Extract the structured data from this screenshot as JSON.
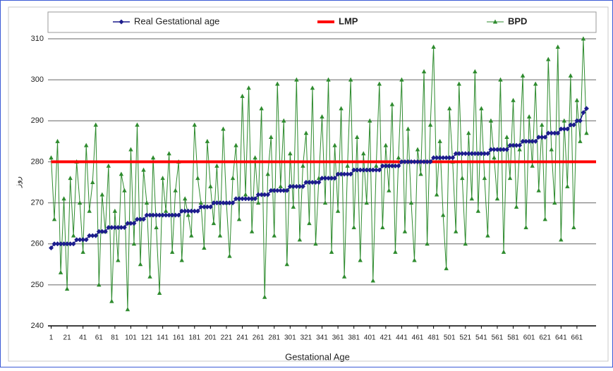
{
  "chart_data": {
    "type": "line",
    "x_label": "Gestational Age",
    "y_label": "روز",
    "legend": "top",
    "grid": true,
    "xlim": [
      -3,
      685
    ],
    "ylim": [
      240,
      310
    ],
    "xticks": [
      1,
      21,
      41,
      61,
      81,
      101,
      121,
      141,
      161,
      181,
      201,
      221,
      241,
      261,
      281,
      301,
      321,
      341,
      361,
      381,
      401,
      421,
      441,
      461,
      481,
      501,
      521,
      541,
      561,
      581,
      601,
      621,
      641,
      661
    ],
    "yticks": [
      240,
      250,
      260,
      270,
      280,
      290,
      300,
      310
    ],
    "x": [
      1,
      5,
      9,
      13,
      17,
      21,
      25,
      29,
      33,
      37,
      41,
      45,
      49,
      53,
      57,
      61,
      65,
      69,
      73,
      77,
      81,
      85,
      89,
      93,
      97,
      101,
      105,
      109,
      113,
      117,
      121,
      125,
      129,
      133,
      137,
      141,
      145,
      149,
      153,
      157,
      161,
      165,
      169,
      173,
      177,
      181,
      185,
      189,
      193,
      197,
      201,
      205,
      209,
      213,
      217,
      221,
      225,
      229,
      233,
      237,
      241,
      245,
      249,
      253,
      257,
      261,
      265,
      269,
      273,
      277,
      281,
      285,
      289,
      293,
      297,
      301,
      305,
      309,
      313,
      317,
      321,
      325,
      329,
      333,
      337,
      341,
      345,
      349,
      353,
      357,
      361,
      365,
      369,
      373,
      377,
      381,
      385,
      389,
      393,
      397,
      401,
      405,
      409,
      413,
      417,
      421,
      425,
      429,
      433,
      437,
      441,
      445,
      449,
      453,
      457,
      461,
      465,
      469,
      473,
      477,
      481,
      485,
      489,
      493,
      497,
      501,
      505,
      509,
      513,
      517,
      521,
      525,
      529,
      533,
      537,
      541,
      545,
      549,
      553,
      557,
      561,
      565,
      569,
      573,
      577,
      581,
      585,
      589,
      593,
      597,
      601,
      605,
      609,
      613,
      617,
      621,
      625,
      629,
      633,
      637,
      641,
      645,
      649,
      653,
      657,
      661,
      665,
      669,
      673
    ],
    "series": [
      {
        "name": "Real Gestational age",
        "color": "#1c1c8c",
        "marker": "diamond",
        "width": 1.5,
        "values": [
          259,
          260,
          260,
          260,
          260,
          260,
          260,
          260,
          261,
          261,
          261,
          261,
          262,
          262,
          262,
          263,
          263,
          263,
          264,
          264,
          264,
          264,
          264,
          264,
          265,
          265,
          265,
          266,
          266,
          266,
          267,
          267,
          267,
          267,
          267,
          267,
          267,
          267,
          267,
          267,
          267,
          268,
          268,
          268,
          268,
          268,
          268,
          269,
          269,
          269,
          269,
          270,
          270,
          270,
          270,
          270,
          270,
          270,
          271,
          271,
          271,
          271,
          271,
          271,
          271,
          272,
          272,
          272,
          272,
          273,
          273,
          273,
          273,
          273,
          273,
          274,
          274,
          274,
          274,
          274,
          275,
          275,
          275,
          275,
          275,
          276,
          276,
          276,
          276,
          276,
          277,
          277,
          277,
          277,
          277,
          278,
          278,
          278,
          278,
          278,
          278,
          278,
          278,
          278,
          279,
          279,
          279,
          279,
          279,
          279,
          280,
          280,
          280,
          280,
          280,
          280,
          280,
          280,
          280,
          280,
          281,
          281,
          281,
          281,
          281,
          281,
          281,
          282,
          282,
          282,
          282,
          282,
          282,
          282,
          282,
          282,
          282,
          282,
          283,
          283,
          283,
          283,
          283,
          283,
          284,
          284,
          284,
          284,
          285,
          285,
          285,
          285,
          285,
          286,
          286,
          286,
          287,
          287,
          287,
          287,
          288,
          288,
          288,
          289,
          289,
          290,
          290,
          292,
          293
        ]
      },
      {
        "name": "LMP",
        "color": "#ff0000",
        "marker": "none",
        "width": 4,
        "x": [
          1,
          685
        ],
        "values": [
          280,
          280
        ]
      },
      {
        "name": "BPD",
        "color": "#2e8b2e",
        "marker": "triangle",
        "width": 1,
        "values": [
          281,
          266,
          285,
          253,
          271,
          249,
          276,
          262,
          280,
          270,
          258,
          284,
          268,
          275,
          289,
          250,
          272,
          263,
          279,
          246,
          268,
          256,
          277,
          273,
          244,
          283,
          260,
          289,
          255,
          278,
          270,
          252,
          281,
          264,
          248,
          276,
          268,
          282,
          258,
          273,
          280,
          256,
          271,
          267,
          262,
          289,
          276,
          270,
          259,
          285,
          274,
          265,
          279,
          262,
          288,
          270,
          257,
          276,
          284,
          266,
          296,
          272,
          298,
          263,
          281,
          270,
          293,
          247,
          277,
          286,
          262,
          299,
          274,
          290,
          255,
          282,
          269,
          300,
          261,
          279,
          287,
          265,
          298,
          260,
          276,
          291,
          270,
          300,
          258,
          284,
          268,
          293,
          252,
          279,
          300,
          264,
          286,
          256,
          282,
          270,
          290,
          251,
          279,
          299,
          264,
          284,
          273,
          294,
          258,
          281,
          300,
          263,
          288,
          270,
          256,
          283,
          277,
          302,
          260,
          289,
          308,
          272,
          285,
          267,
          254,
          293,
          280,
          263,
          299,
          276,
          260,
          287,
          271,
          302,
          268,
          293,
          276,
          262,
          290,
          281,
          271,
          300,
          258,
          286,
          276,
          295,
          269,
          283,
          301,
          264,
          291,
          279,
          299,
          273,
          289,
          266,
          305,
          283,
          270,
          308,
          261,
          290,
          274,
          301,
          264,
          295,
          285,
          310,
          287
        ]
      }
    ]
  }
}
